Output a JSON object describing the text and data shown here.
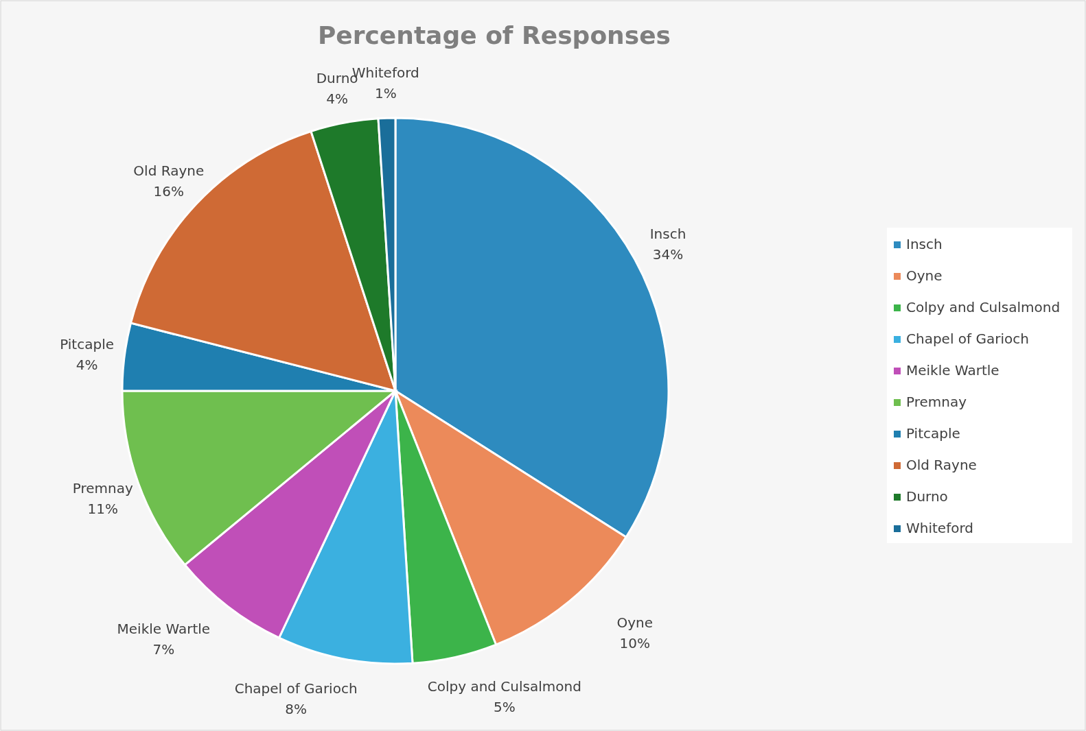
{
  "chart_data": {
    "type": "pie",
    "title": "Percentage of Responses",
    "categories": [
      "Insch",
      "Oyne",
      "Colpy and Culsalmond",
      "Chapel of Garioch",
      "Meikle Wartle",
      "Premnay",
      "Pitcaple",
      "Old Rayne",
      "Durno",
      "Whiteford"
    ],
    "values": [
      34,
      10,
      5,
      8,
      7,
      11,
      4,
      16,
      4,
      1
    ],
    "value_labels": [
      "34%",
      "10%",
      "5%",
      "8%",
      "7%",
      "11%",
      "4%",
      "16%",
      "4%",
      "1%"
    ],
    "colors": [
      "#2e8bbf",
      "#ec8a5a",
      "#3cb44a",
      "#3bb0e0",
      "#c04fb8",
      "#6fbf4f",
      "#1f7fb0",
      "#cf6a35",
      "#1e7a2a",
      "#1a6e9a"
    ],
    "legend": "right"
  }
}
